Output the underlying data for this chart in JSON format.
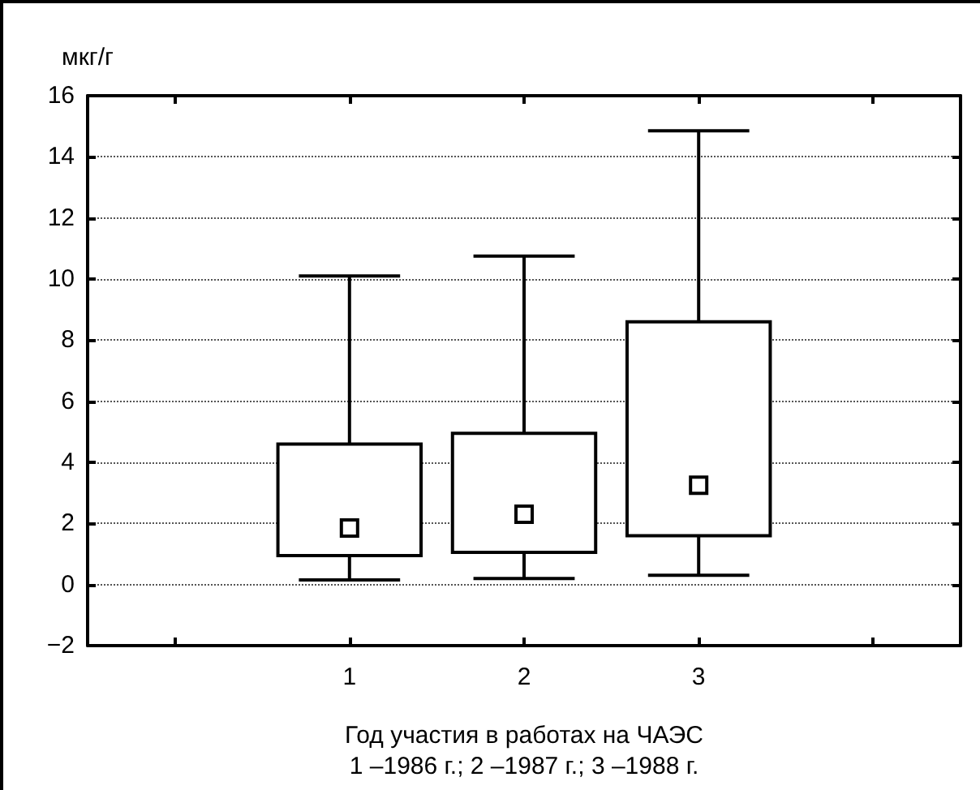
{
  "chart_data": {
    "type": "box",
    "ylabel": "мкг/г",
    "xlabel": "Год участия в работах на ЧАЭС\n1 –1986 г.; 2 –1987 г.; 3 –1988 г.",
    "categories": [
      null,
      "1",
      "2",
      "3",
      null
    ],
    "boxes": [
      null,
      {
        "low": 0.15,
        "q1": 0.95,
        "median": 1.85,
        "q3": 4.6,
        "high": 10.1
      },
      {
        "low": 0.2,
        "q1": 1.05,
        "median": 2.3,
        "q3": 4.95,
        "high": 10.75
      },
      {
        "low": 0.3,
        "q1": 1.6,
        "median": 3.25,
        "q3": 8.6,
        "high": 14.85
      },
      null
    ],
    "ylim": [
      -2,
      16
    ],
    "yticks": [
      -2,
      0,
      2,
      4,
      6,
      8,
      10,
      12,
      14,
      16
    ],
    "grid": "y",
    "marker": "square"
  }
}
